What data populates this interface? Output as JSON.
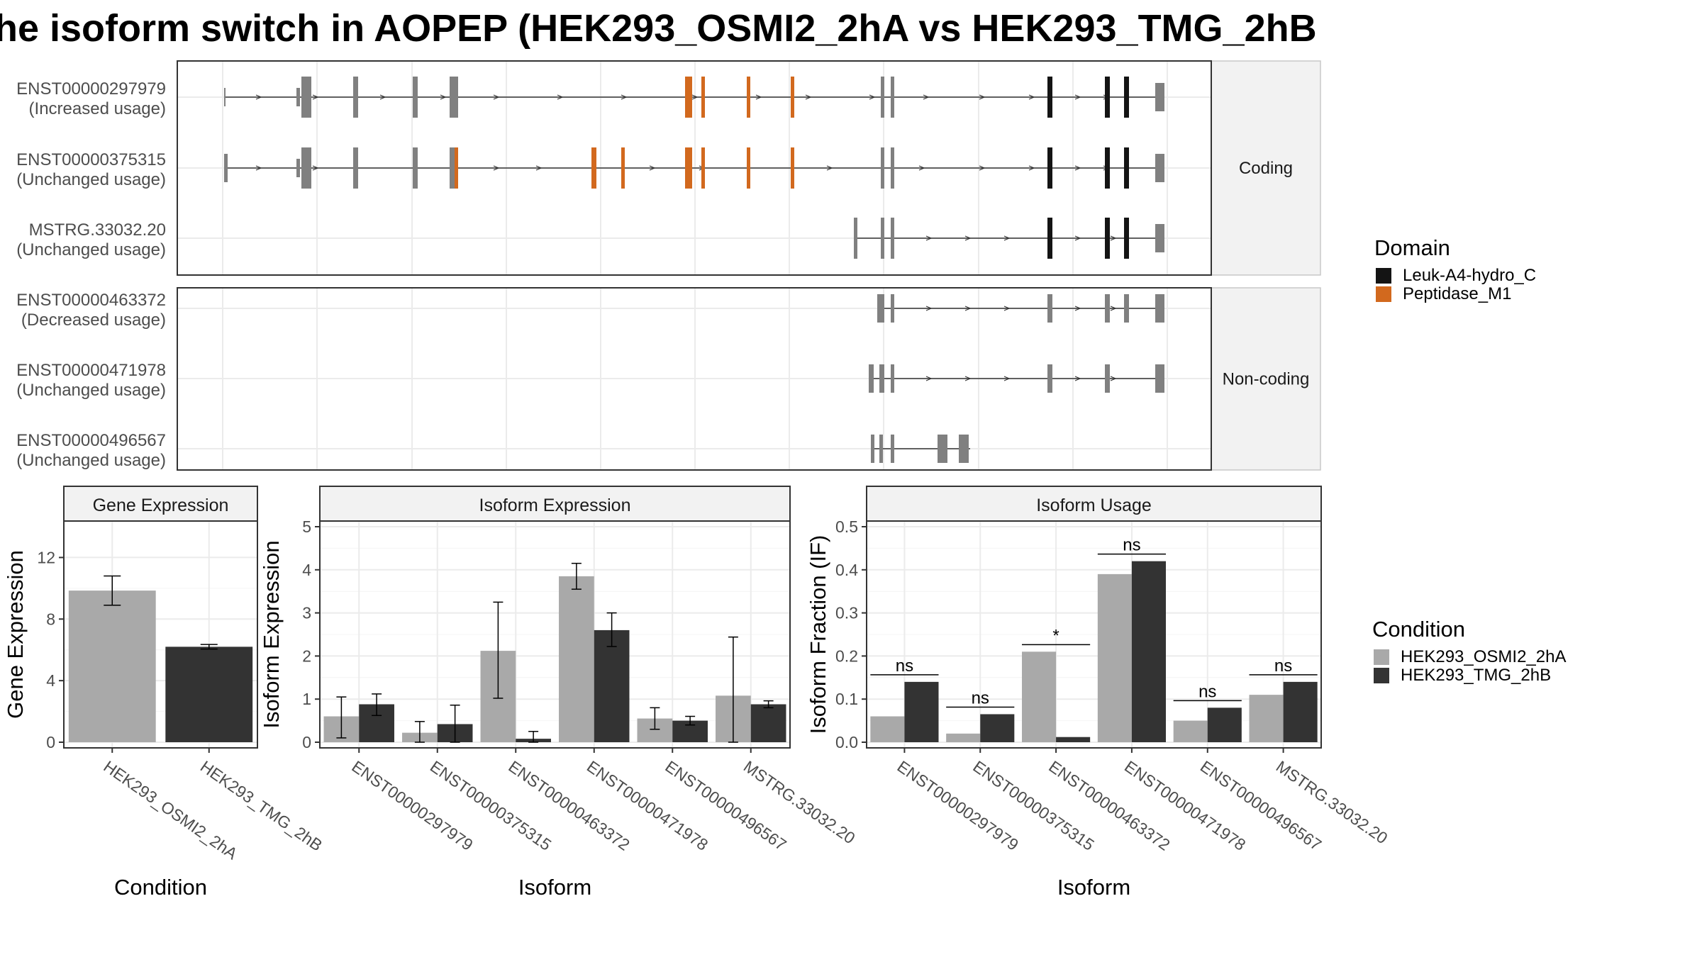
{
  "title": "he isoform switch in AOPEP (HEK293_OSMI2_2hA vs HEK293_TMG_2hB",
  "colors": {
    "exon": "#808080",
    "leuk": "#141414",
    "pep": "#d2691e",
    "cond1": "#a9a9a9",
    "cond2": "#333333",
    "strip": "#f2f2f2",
    "grid": "#ebebeb"
  },
  "structure": {
    "facets": [
      "Coding",
      "Non-coding"
    ],
    "isoforms": [
      {
        "id": "ENST00000297979",
        "usage": "(Increased usage)"
      },
      {
        "id": "ENST00000375315",
        "usage": "(Unchanged usage)"
      },
      {
        "id": "MSTRG.33032.20",
        "usage": "(Unchanged usage)"
      },
      {
        "id": "ENST00000463372",
        "usage": "(Decreased usage)"
      },
      {
        "id": "ENST00000471978",
        "usage": "(Unchanged usage)"
      },
      {
        "id": "ENST00000496567",
        "usage": "(Unchanged usage)"
      }
    ]
  },
  "legend_domain": {
    "title": "Domain",
    "items": [
      {
        "label": "Leuk-A4-hydro_C",
        "color": "#141414"
      },
      {
        "label": "Peptidase_M1",
        "color": "#d2691e"
      }
    ]
  },
  "legend_condition": {
    "title": "Condition",
    "items": [
      {
        "label": "HEK293_OSMI2_2hA",
        "color": "#a9a9a9"
      },
      {
        "label": "HEK293_TMG_2hB",
        "color": "#333333"
      }
    ]
  },
  "chart_data": [
    {
      "type": "bar",
      "title": "Gene Expression",
      "xlabel": "Condition",
      "ylabel": "Gene Expression",
      "ylim": [
        0,
        14
      ],
      "yticks": [
        0,
        4,
        8,
        12
      ],
      "categories": [
        "HEK293_OSMI2_2hA",
        "HEK293_TMG_2hB"
      ],
      "values": [
        9.85,
        6.2
      ],
      "error": [
        [
          8.9,
          10.8
        ],
        [
          6.05,
          6.35
        ]
      ]
    },
    {
      "type": "bar",
      "title": "Isoform Expression",
      "xlabel": "Isoform",
      "ylabel": "Isoform Expression",
      "ylim": [
        0,
        5
      ],
      "yticks": [
        0,
        1,
        2,
        3,
        4,
        5
      ],
      "categories": [
        "ENST00000297979",
        "ENST00000375315",
        "ENST00000463372",
        "ENST00000471978",
        "ENST00000496567",
        "MSTRG.33032.20"
      ],
      "series": [
        {
          "name": "HEK293_OSMI2_2hA",
          "values": [
            0.6,
            0.22,
            2.12,
            3.85,
            0.55,
            1.08
          ],
          "error": [
            [
              0.1,
              1.05
            ],
            [
              0.0,
              0.48
            ],
            [
              1.02,
              3.25
            ],
            [
              3.55,
              4.15
            ],
            [
              0.3,
              0.8
            ],
            [
              0.0,
              2.44
            ]
          ]
        },
        {
          "name": "HEK293_TMG_2hB",
          "values": [
            0.88,
            0.42,
            0.08,
            2.6,
            0.5,
            0.88
          ],
          "error": [
            [
              0.62,
              1.12
            ],
            [
              0.0,
              0.86
            ],
            [
              0.0,
              0.25
            ],
            [
              2.22,
              3.0
            ],
            [
              0.4,
              0.6
            ],
            [
              0.8,
              0.96
            ]
          ]
        }
      ]
    },
    {
      "type": "bar",
      "title": "Isoform Usage",
      "xlabel": "Isoform",
      "ylabel": "Isoform Fraction (IF)",
      "ylim": [
        0,
        0.5
      ],
      "yticks": [
        "0.0",
        "0.1",
        "0.2",
        "0.3",
        "0.4",
        "0.5"
      ],
      "categories": [
        "ENST00000297979",
        "ENST00000375315",
        "ENST00000463372",
        "ENST00000471978",
        "ENST00000496567",
        "MSTRG.33032.20"
      ],
      "series": [
        {
          "name": "HEK293_OSMI2_2hA",
          "values": [
            0.06,
            0.02,
            0.21,
            0.39,
            0.05,
            0.11
          ]
        },
        {
          "name": "HEK293_TMG_2hB",
          "values": [
            0.14,
            0.065,
            0.012,
            0.42,
            0.08,
            0.14
          ]
        }
      ],
      "significance": [
        "ns",
        "ns",
        "*",
        "ns",
        "ns",
        "ns"
      ]
    }
  ]
}
